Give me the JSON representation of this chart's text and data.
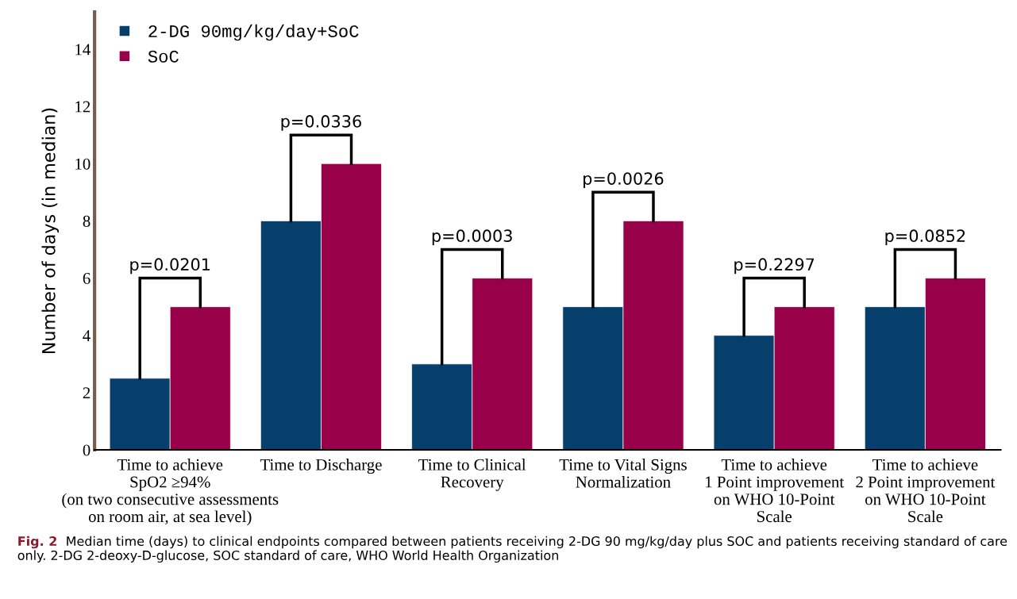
{
  "chart_data": {
    "type": "bar",
    "ylabel": "Number of days (in median)",
    "categories": [
      "Time to achieve\nSpO2 ≥94%\n(on two consecutive assessments\non room air, at sea level)",
      "Time to Discharge",
      "Time to Clinical\nRecovery",
      "Time to Vital Signs\nNormalization",
      "Time to achieve\n1 Point improvement\non WHO 10-Point\nScale",
      "Time to achieve\n2 Point improvement\non WHO 10-Point\nScale"
    ],
    "series": [
      {
        "name": "2-DG 90mg/kg/day+SoC",
        "color": "#063f6b",
        "values": [
          2.5,
          8,
          3,
          5,
          4,
          5
        ]
      },
      {
        "name": "SoC",
        "color": "#99004a",
        "values": [
          5,
          10,
          6,
          8,
          5,
          6
        ]
      }
    ],
    "ylim": [
      0,
      15.3
    ],
    "yticks": [
      0,
      2,
      4,
      6,
      8,
      10,
      12,
      14
    ],
    "grid": false,
    "legend": "top left",
    "annotations": [
      "p=0.0201",
      "p=0.0336",
      "p=0.0003",
      "p=0.0026",
      "p=0.2297",
      "p=0.0852",
      "Fig. 2",
      "Median time (days) to clinical endpoints compared between patients receiving 2-DG 90 mg/kg/day plus SOC and patients receiving standard of care only. 2-DG 2-deoxy-D-glucose, SOC standard of care, WHO World Health Organization"
    ]
  }
}
